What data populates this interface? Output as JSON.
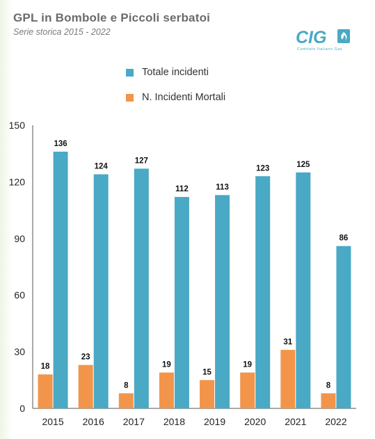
{
  "header": {
    "title": "GPL in Bombole e Piccoli serbatoi",
    "subtitle": "Serie storica 2015 - 2022"
  },
  "logo": {
    "text": "CIG",
    "tagline": "Comitato Italiano Gas"
  },
  "colors": {
    "total": "#4aa9c4",
    "fatal": "#f2954a",
    "axis": "#555555",
    "title": "#6b6b6b"
  },
  "chart_data": {
    "type": "bar",
    "categories": [
      "2015",
      "2016",
      "2017",
      "2018",
      "2019",
      "2020",
      "2021",
      "2022"
    ],
    "series": [
      {
        "name": "N. Incidenti Mortali",
        "values": [
          18,
          23,
          8,
          19,
          15,
          19,
          31,
          8
        ]
      },
      {
        "name": "Totale incidenti",
        "values": [
          136,
          124,
          127,
          112,
          113,
          123,
          125,
          86
        ]
      }
    ],
    "legend_order": [
      "Totale incidenti",
      "N. Incidenti Mortali"
    ],
    "legend_position": "top",
    "ylim": [
      0,
      150
    ],
    "yticks": [
      0,
      30,
      60,
      90,
      120,
      150
    ],
    "grid": false,
    "data_labels": true
  }
}
